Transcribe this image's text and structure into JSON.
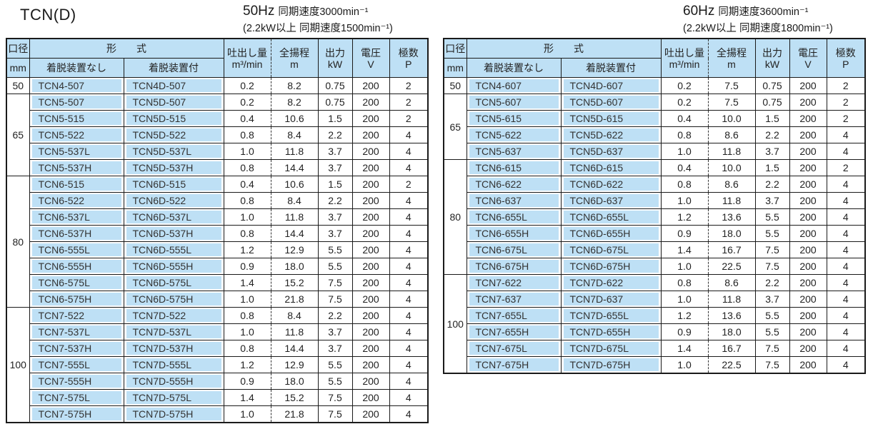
{
  "page": {
    "title": "TCN(D)"
  },
  "colors": {
    "cell_blue": "#bee0f5",
    "border": "#1a1a1a",
    "text": "#222222"
  },
  "columns": {
    "diameter_top": "口径",
    "diameter_unit": "mm",
    "model_group": "形　　式",
    "model_without": "着脱装置なし",
    "model_with": "着脱装置付",
    "flow_top": "吐出し量",
    "flow_unit": "m³/min",
    "head_top": "全揚程",
    "head_unit": "m",
    "output_top": "出力",
    "output_unit": "kW",
    "voltage_top": "電圧",
    "voltage_unit": "V",
    "poles_top": "極数",
    "poles_unit": "P"
  },
  "tables": [
    {
      "heading": {
        "freq": "50Hz",
        "speed": "同期速度3000min⁻¹",
        "note": "(2.2kW以上 同期速度1500min⁻¹)"
      },
      "groups": [
        {
          "diameter": "50",
          "rows": [
            [
              "TCN4-507",
              "TCN4D-507",
              "0.2",
              "8.2",
              "0.75",
              "200",
              "2"
            ]
          ]
        },
        {
          "diameter": "65",
          "rows": [
            [
              "TCN5-507",
              "TCN5D-507",
              "0.2",
              "8.2",
              "0.75",
              "200",
              "2"
            ],
            [
              "TCN5-515",
              "TCN5D-515",
              "0.4",
              "10.6",
              "1.5",
              "200",
              "2"
            ],
            [
              "TCN5-522",
              "TCN5D-522",
              "0.8",
              "8.4",
              "2.2",
              "200",
              "4"
            ],
            [
              "TCN5-537L",
              "TCN5D-537L",
              "1.0",
              "11.8",
              "3.7",
              "200",
              "4"
            ],
            [
              "TCN5-537H",
              "TCN5D-537H",
              "0.8",
              "14.4",
              "3.7",
              "200",
              "4"
            ]
          ]
        },
        {
          "diameter": "80",
          "rows": [
            [
              "TCN6-515",
              "TCN6D-515",
              "0.4",
              "10.6",
              "1.5",
              "200",
              "2"
            ],
            [
              "TCN6-522",
              "TCN6D-522",
              "0.8",
              "8.4",
              "2.2",
              "200",
              "4"
            ],
            [
              "TCN6-537L",
              "TCN6D-537L",
              "1.0",
              "11.8",
              "3.7",
              "200",
              "4"
            ],
            [
              "TCN6-537H",
              "TCN6D-537H",
              "0.8",
              "14.4",
              "3.7",
              "200",
              "4"
            ],
            [
              "TCN6-555L",
              "TCN6D-555L",
              "1.2",
              "12.9",
              "5.5",
              "200",
              "4"
            ],
            [
              "TCN6-555H",
              "TCN6D-555H",
              "0.9",
              "18.0",
              "5.5",
              "200",
              "4"
            ],
            [
              "TCN6-575L",
              "TCN6D-575L",
              "1.4",
              "15.2",
              "7.5",
              "200",
              "4"
            ],
            [
              "TCN6-575H",
              "TCN6D-575H",
              "1.0",
              "21.8",
              "7.5",
              "200",
              "4"
            ]
          ]
        },
        {
          "diameter": "100",
          "rows": [
            [
              "TCN7-522",
              "TCN7D-522",
              "0.8",
              "8.4",
              "2.2",
              "200",
              "4"
            ],
            [
              "TCN7-537L",
              "TCN7D-537L",
              "1.0",
              "11.8",
              "3.7",
              "200",
              "4"
            ],
            [
              "TCN7-537H",
              "TCN7D-537H",
              "0.8",
              "14.4",
              "3.7",
              "200",
              "4"
            ],
            [
              "TCN7-555L",
              "TCN7D-555L",
              "1.2",
              "12.9",
              "5.5",
              "200",
              "4"
            ],
            [
              "TCN7-555H",
              "TCN7D-555H",
              "0.9",
              "18.0",
              "5.5",
              "200",
              "4"
            ],
            [
              "TCN7-575L",
              "TCN7D-575L",
              "1.4",
              "15.2",
              "7.5",
              "200",
              "4"
            ],
            [
              "TCN7-575H",
              "TCN7D-575H",
              "1.0",
              "21.8",
              "7.5",
              "200",
              "4"
            ]
          ]
        }
      ]
    },
    {
      "heading": {
        "freq": "60Hz",
        "speed": "同期速度3600min⁻¹",
        "note": "(2.2kW以上 同期速度1800min⁻¹)"
      },
      "groups": [
        {
          "diameter": "50",
          "rows": [
            [
              "TCN4-607",
              "TCN4D-607",
              "0.2",
              "7.5",
              "0.75",
              "200",
              "2"
            ]
          ]
        },
        {
          "diameter": "65",
          "rows": [
            [
              "TCN5-607",
              "TCN5D-607",
              "0.2",
              "7.5",
              "0.75",
              "200",
              "2"
            ],
            [
              "TCN5-615",
              "TCN5D-615",
              "0.4",
              "10.0",
              "1.5",
              "200",
              "2"
            ],
            [
              "TCN5-622",
              "TCN5D-622",
              "0.8",
              "8.6",
              "2.2",
              "200",
              "4"
            ],
            [
              "TCN5-637",
              "TCN5D-637",
              "1.0",
              "11.8",
              "3.7",
              "200",
              "4"
            ]
          ]
        },
        {
          "diameter": "80",
          "rows": [
            [
              "TCN6-615",
              "TCN6D-615",
              "0.4",
              "10.0",
              "1.5",
              "200",
              "2"
            ],
            [
              "TCN6-622",
              "TCN6D-622",
              "0.8",
              "8.6",
              "2.2",
              "200",
              "4"
            ],
            [
              "TCN6-637",
              "TCN6D-637",
              "1.0",
              "11.8",
              "3.7",
              "200",
              "4"
            ],
            [
              "TCN6-655L",
              "TCN6D-655L",
              "1.2",
              "13.6",
              "5.5",
              "200",
              "4"
            ],
            [
              "TCN6-655H",
              "TCN6D-655H",
              "0.9",
              "18.0",
              "5.5",
              "200",
              "4"
            ],
            [
              "TCN6-675L",
              "TCN6D-675L",
              "1.4",
              "16.7",
              "7.5",
              "200",
              "4"
            ],
            [
              "TCN6-675H",
              "TCN6D-675H",
              "1.0",
              "22.5",
              "7.5",
              "200",
              "4"
            ]
          ]
        },
        {
          "diameter": "100",
          "rows": [
            [
              "TCN7-622",
              "TCN7D-622",
              "0.8",
              "8.6",
              "2.2",
              "200",
              "4"
            ],
            [
              "TCN7-637",
              "TCN7D-637",
              "1.0",
              "11.8",
              "3.7",
              "200",
              "4"
            ],
            [
              "TCN7-655L",
              "TCN7D-655L",
              "1.2",
              "13.6",
              "5.5",
              "200",
              "4"
            ],
            [
              "TCN7-655H",
              "TCN7D-655H",
              "0.9",
              "18.0",
              "5.5",
              "200",
              "4"
            ],
            [
              "TCN7-675L",
              "TCN7D-675L",
              "1.4",
              "16.7",
              "7.5",
              "200",
              "4"
            ],
            [
              "TCN7-675H",
              "TCN7D-675H",
              "1.0",
              "22.5",
              "7.5",
              "200",
              "4"
            ]
          ]
        }
      ]
    }
  ]
}
